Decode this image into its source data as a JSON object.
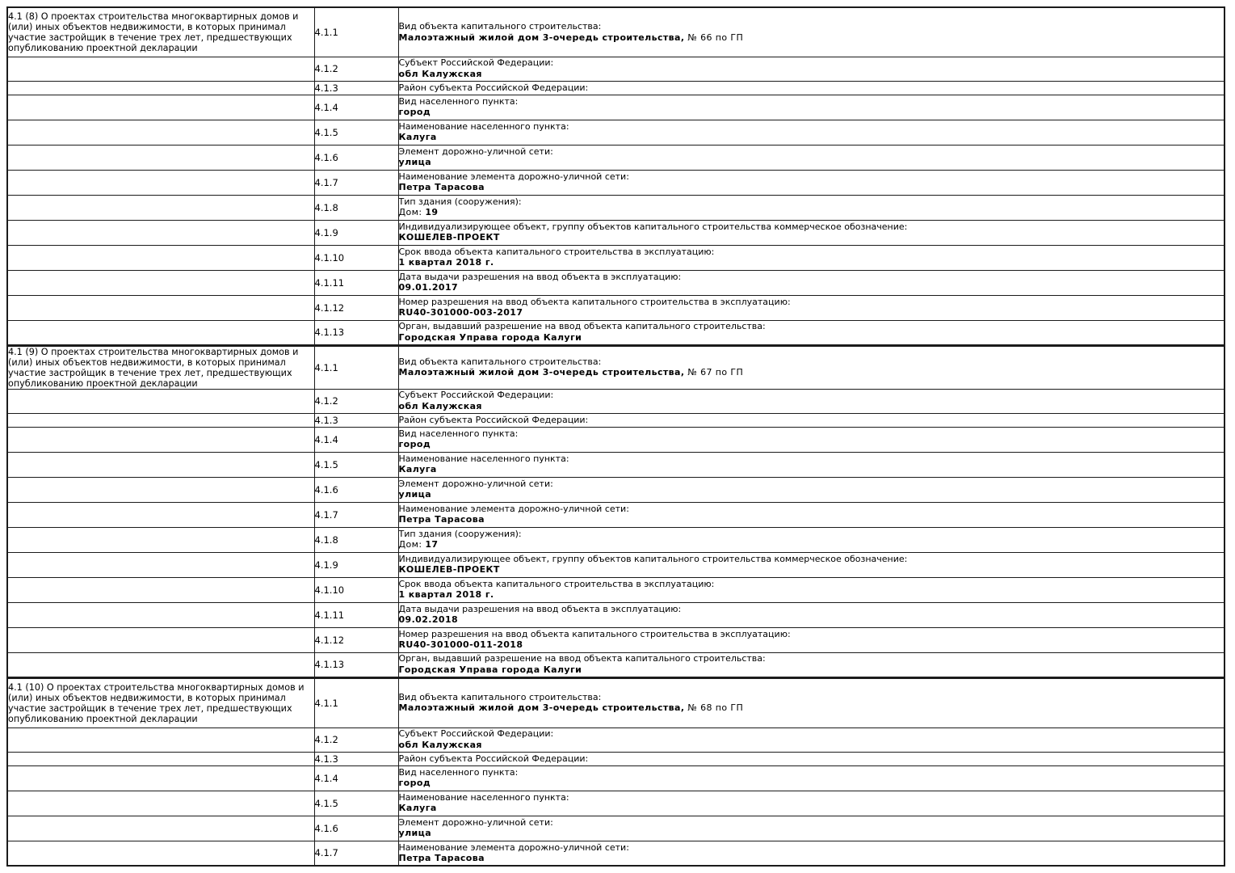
{
  "document": {
    "colors": {
      "background": "#ffffff",
      "text": "#000000",
      "border": "#1b1b1b"
    }
  },
  "table": {
    "blocks": [
      {
        "header": "4.1 (8) О проектах строительства многоквартирных домов и (или) иных объектов недвижимости, в которых принимал участие застройщик в течение трех лет, предшествующих опубликованию проектной декларации",
        "rows": [
          {
            "num": "4.1.1",
            "label": "Вид объекта капитального строительства:",
            "value": [
              {
                "text": "Малоэтажный жилой дом 3-очередь строительства,",
                "bold": true
              },
              {
                "text": " № 66 по ГП",
                "bold": false
              }
            ]
          },
          {
            "num": "4.1.2",
            "label": "Субъект Российской Федерации:",
            "value": [
              {
                "text": "обл Калужская",
                "bold": true
              }
            ]
          },
          {
            "num": "4.1.3",
            "label": "Район субъекта Российской Федерации:",
            "value": []
          },
          {
            "num": "4.1.4",
            "label": "Вид населенного пункта:",
            "value": [
              {
                "text": "город",
                "bold": true
              }
            ]
          },
          {
            "num": "4.1.5",
            "label": "Наименование населенного пункта:",
            "value": [
              {
                "text": "Калуга",
                "bold": true
              }
            ]
          },
          {
            "num": "4.1.6",
            "label": "Элемент дорожно-уличной сети:",
            "value": [
              {
                "text": "улица",
                "bold": true
              }
            ]
          },
          {
            "num": "4.1.7",
            "label": "Наименование элемента дорожно-уличной сети:",
            "value": [
              {
                "text": "Петра Тарасова",
                "bold": true
              }
            ]
          },
          {
            "num": "4.1.8",
            "label": "Тип здания (сооружения):",
            "value": [
              {
                "text": "Дом: ",
                "bold": false
              },
              {
                "text": "19",
                "bold": true
              }
            ]
          },
          {
            "num": "4.1.9",
            "label": "Индивидуализирующее объект, группу объектов капитального строительства коммерческое обозначение:",
            "value": [
              {
                "text": "КОШЕЛЕВ-ПРОЕКТ",
                "bold": true
              }
            ]
          },
          {
            "num": "4.1.10",
            "label": "Срок ввода объекта капитального строительства в эксплуатацию:",
            "value": [
              {
                "text": "1 квартал 2018 г.",
                "bold": true
              }
            ]
          },
          {
            "num": "4.1.11",
            "label": "Дата выдачи разрешения на ввод объекта в эксплуатацию:",
            "value": [
              {
                "text": "09.01.2017",
                "bold": true
              }
            ]
          },
          {
            "num": "4.1.12",
            "label": "Номер разрешения на ввод объекта капитального строительства в эксплуатацию:",
            "value": [
              {
                "text": "RU40-301000-003-2017",
                "bold": true
              }
            ]
          },
          {
            "num": "4.1.13",
            "label": "Орган, выдавший разрешение на ввод объекта капитального строительства:",
            "value": [
              {
                "text": "Городская Управа города Калуги",
                "bold": true
              }
            ]
          }
        ]
      },
      {
        "header": "4.1 (9) О проектах строительства многоквартирных домов и (или) иных объектов недвижимости, в которых принимал участие застройщик в течение трех лет, предшествующих опубликованию проектной декларации",
        "rows": [
          {
            "num": "4.1.1",
            "label": "Вид объекта капитального строительства:",
            "value": [
              {
                "text": "Малоэтажный жилой дом 3-очередь строительства,",
                "bold": true
              },
              {
                "text": " № 67 по ГП",
                "bold": false
              }
            ]
          },
          {
            "num": "4.1.2",
            "label": "Субъект Российской Федерации:",
            "value": [
              {
                "text": "обл Калужская",
                "bold": true
              }
            ]
          },
          {
            "num": "4.1.3",
            "label": "Район субъекта Российской Федерации:",
            "value": []
          },
          {
            "num": "4.1.4",
            "label": "Вид населенного пункта:",
            "value": [
              {
                "text": "город",
                "bold": true
              }
            ]
          },
          {
            "num": "4.1.5",
            "label": "Наименование населенного пункта:",
            "value": [
              {
                "text": "Калуга",
                "bold": true
              }
            ]
          },
          {
            "num": "4.1.6",
            "label": "Элемент дорожно-уличной сети:",
            "value": [
              {
                "text": "улица",
                "bold": true
              }
            ]
          },
          {
            "num": "4.1.7",
            "label": "Наименование элемента дорожно-уличной сети:",
            "value": [
              {
                "text": "Петра Тарасова",
                "bold": true
              }
            ]
          },
          {
            "num": "4.1.8",
            "label": "Тип здания (сооружения):",
            "value": [
              {
                "text": "Дом: ",
                "bold": false
              },
              {
                "text": "17",
                "bold": true
              }
            ]
          },
          {
            "num": "4.1.9",
            "label": "Индивидуализирующее объект, группу объектов капитального строительства коммерческое обозначение:",
            "value": [
              {
                "text": "КОШЕЛЕВ-ПРОЕКТ",
                "bold": true
              }
            ]
          },
          {
            "num": "4.1.10",
            "label": "Срок ввода объекта капитального строительства в эксплуатацию:",
            "value": [
              {
                "text": "1 квартал 2018 г.",
                "bold": true
              }
            ]
          },
          {
            "num": "4.1.11",
            "label": "Дата выдачи разрешения на ввод объекта в эксплуатацию:",
            "value": [
              {
                "text": "09.02.2018",
                "bold": true
              }
            ]
          },
          {
            "num": "4.1.12",
            "label": "Номер разрешения на ввод объекта капитального строительства в эксплуатацию:",
            "value": [
              {
                "text": "RU40-301000-011-2018",
                "bold": true
              }
            ]
          },
          {
            "num": "4.1.13",
            "label": "Орган, выдавший разрешение на ввод объекта капитального строительства:",
            "value": [
              {
                "text": "Городская Управа города Калуги",
                "bold": true
              }
            ]
          }
        ]
      },
      {
        "header": "4.1 (10) О проектах строительства многоквартирных домов и (или) иных объектов недвижимости, в которых принимал участие застройщик в течение трех лет, предшествующих опубликованию проектной декларации",
        "rows": [
          {
            "num": "4.1.1",
            "label": "Вид объекта капитального строительства:",
            "value": [
              {
                "text": "Малоэтажный жилой дом 3-очередь строительства,",
                "bold": true
              },
              {
                "text": " № 68 по ГП",
                "bold": false
              }
            ]
          },
          {
            "num": "4.1.2",
            "label": "Субъект Российской Федерации:",
            "value": [
              {
                "text": "обл Калужская",
                "bold": true
              }
            ]
          },
          {
            "num": "4.1.3",
            "label": "Район субъекта Российской Федерации:",
            "value": []
          },
          {
            "num": "4.1.4",
            "label": "Вид населенного пункта:",
            "value": [
              {
                "text": "город",
                "bold": true
              }
            ]
          },
          {
            "num": "4.1.5",
            "label": "Наименование населенного пункта:",
            "value": [
              {
                "text": "Калуга",
                "bold": true
              }
            ]
          },
          {
            "num": "4.1.6",
            "label": "Элемент дорожно-уличной сети:",
            "value": [
              {
                "text": "улица",
                "bold": true
              }
            ]
          },
          {
            "num": "4.1.7",
            "label": "Наименование элемента дорожно-уличной сети:",
            "value": [
              {
                "text": "Петра Тарасова",
                "bold": true
              }
            ]
          }
        ]
      }
    ]
  }
}
